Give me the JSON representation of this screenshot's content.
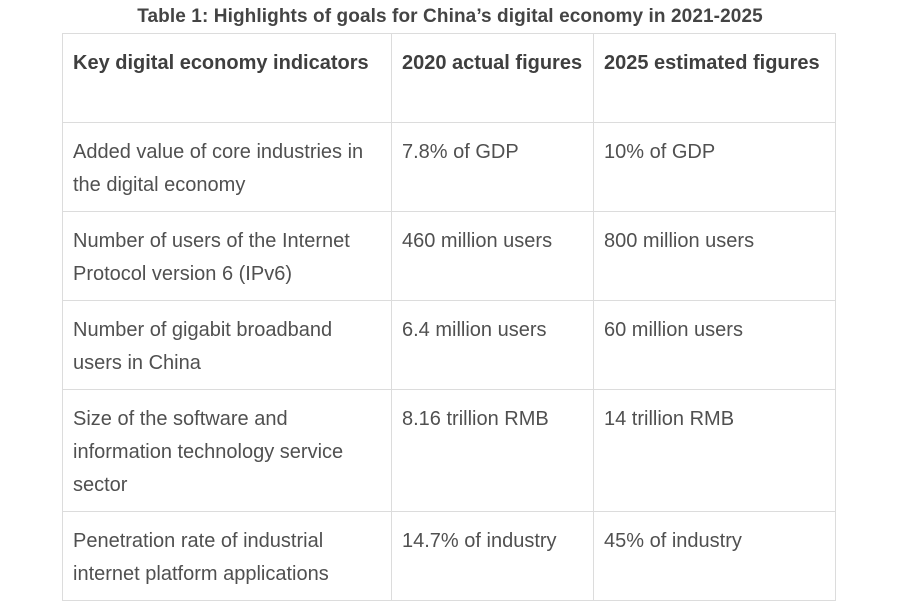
{
  "caption": "Table 1: Highlights of goals for China’s digital economy in 2021-2025",
  "headers": [
    "Key digital economy indicators",
    "2020 actual figures",
    "2025 estimated figures"
  ],
  "rows": [
    [
      "Added value of core industries in the digital economy",
      "7.8% of GDP",
      "10% of GDP"
    ],
    [
      "Number of users of the Internet Protocol version 6 (IPv6)",
      "460 million users",
      "800 million users"
    ],
    [
      "Number of gigabit broadband users in China",
      "6.4 million users",
      "60 million users"
    ],
    [
      "Size of the software and information technology service sector",
      "8.16 trillion RMB",
      "14 trillion RMB"
    ],
    [
      "Penetration rate of industrial internet platform applications",
      "14.7% of industry",
      "45% of industry"
    ]
  ]
}
